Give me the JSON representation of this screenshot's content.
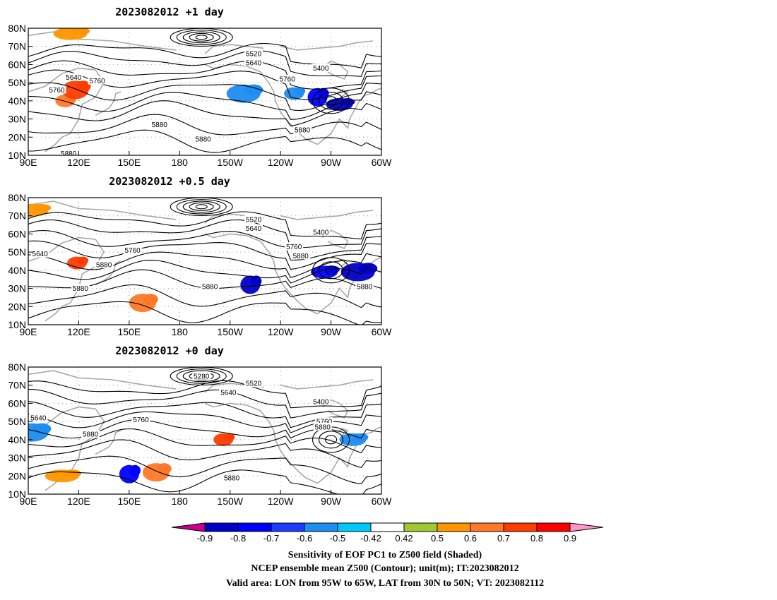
{
  "chart_data": [
    {
      "type": "map-contour",
      "title": "2023082012  +1 day",
      "xlim": [
        90,
        300
      ],
      "ylim": [
        10,
        80
      ],
      "xticks": [
        "90E",
        "120E",
        "150E",
        "180",
        "150W",
        "120W",
        "90W",
        "60W"
      ],
      "yticks": [
        "10N",
        "20N",
        "30N",
        "40N",
        "50N",
        "60N",
        "70N",
        "80N"
      ],
      "contour_labels": [
        {
          "text": "5520",
          "lon": 224,
          "lat": 66
        },
        {
          "text": "5640",
          "lon": 224,
          "lat": 61
        },
        {
          "text": "5400",
          "lon": 264,
          "lat": 58
        },
        {
          "text": "5760",
          "lon": 107,
          "lat": 46
        },
        {
          "text": "5760",
          "lon": 131,
          "lat": 51
        },
        {
          "text": "5640",
          "lon": 117,
          "lat": 53
        },
        {
          "text": "5760",
          "lon": 244,
          "lat": 52
        },
        {
          "text": "5880",
          "lon": 168,
          "lat": 27
        },
        {
          "text": "5880",
          "lon": 194,
          "lat": 19
        },
        {
          "text": "5880",
          "lon": 253,
          "lat": 24
        },
        {
          "text": "5880",
          "lon": 114,
          "lat": 11
        }
      ],
      "shaded_regions": [
        {
          "lon": 112,
          "lat": 40,
          "value": 0.6
        },
        {
          "lon": 118,
          "lat": 46,
          "value": 0.7
        },
        {
          "lon": 115,
          "lat": 77,
          "value": 0.5
        },
        {
          "lon": 262,
          "lat": 42,
          "value": -0.7
        },
        {
          "lon": 275,
          "lat": 38,
          "value": -0.8
        },
        {
          "lon": 218,
          "lat": 44,
          "value": -0.5
        },
        {
          "lon": 248,
          "lat": 44,
          "value": -0.5
        }
      ]
    },
    {
      "type": "map-contour",
      "title": "2023082012  +0.5 day",
      "xlim": [
        90,
        300
      ],
      "ylim": [
        10,
        80
      ],
      "xticks": [
        "90E",
        "120E",
        "150E",
        "180",
        "150W",
        "120W",
        "90W",
        "60W"
      ],
      "yticks": [
        "10N",
        "20N",
        "30N",
        "40N",
        "50N",
        "60N",
        "70N",
        "80N"
      ],
      "contour_labels": [
        {
          "text": "5520",
          "lon": 224,
          "lat": 68
        },
        {
          "text": "5640",
          "lon": 224,
          "lat": 63
        },
        {
          "text": "5400",
          "lon": 264,
          "lat": 61
        },
        {
          "text": "5640",
          "lon": 97,
          "lat": 49
        },
        {
          "text": "5760",
          "lon": 152,
          "lat": 51
        },
        {
          "text": "5880",
          "lon": 135,
          "lat": 43
        },
        {
          "text": "5760",
          "lon": 248,
          "lat": 53
        },
        {
          "text": "5880",
          "lon": 252,
          "lat": 48
        },
        {
          "text": "5880",
          "lon": 198,
          "lat": 31
        },
        {
          "text": "5880",
          "lon": 290,
          "lat": 31
        },
        {
          "text": "5880",
          "lon": 121,
          "lat": 30
        }
      ],
      "shaded_regions": [
        {
          "lon": 119,
          "lat": 44,
          "value": 0.7
        },
        {
          "lon": 158,
          "lat": 22,
          "value": 0.6
        },
        {
          "lon": 92,
          "lat": 73,
          "value": 0.5
        },
        {
          "lon": 222,
          "lat": 32,
          "value": -0.8
        },
        {
          "lon": 266,
          "lat": 39,
          "value": -0.7
        },
        {
          "lon": 286,
          "lat": 39,
          "value": -0.8
        }
      ]
    },
    {
      "type": "map-contour",
      "title": "2023082012  +0 day",
      "xlim": [
        90,
        300
      ],
      "ylim": [
        10,
        80
      ],
      "xticks": [
        "90E",
        "120E",
        "150E",
        "180",
        "150W",
        "120W",
        "90W",
        "60W"
      ],
      "yticks": [
        "10N",
        "20N",
        "30N",
        "40N",
        "50N",
        "60N",
        "70N",
        "80N"
      ],
      "contour_labels": [
        {
          "text": "5280",
          "lon": 193,
          "lat": 75
        },
        {
          "text": "5520",
          "lon": 224,
          "lat": 71
        },
        {
          "text": "5640",
          "lon": 209,
          "lat": 66
        },
        {
          "text": "5400",
          "lon": 264,
          "lat": 61
        },
        {
          "text": "5640",
          "lon": 96,
          "lat": 52
        },
        {
          "text": "5760",
          "lon": 157,
          "lat": 51
        },
        {
          "text": "5880",
          "lon": 127,
          "lat": 43
        },
        {
          "text": "5760",
          "lon": 266,
          "lat": 50
        },
        {
          "text": "5880",
          "lon": 265,
          "lat": 47
        },
        {
          "text": "5880",
          "lon": 211,
          "lat": 19
        }
      ],
      "shaded_regions": [
        {
          "lon": 206,
          "lat": 40,
          "value": 0.7
        },
        {
          "lon": 166,
          "lat": 22,
          "value": 0.6
        },
        {
          "lon": 110,
          "lat": 20,
          "value": 0.5
        },
        {
          "lon": 150,
          "lat": 21,
          "value": -0.7
        },
        {
          "lon": 283,
          "lat": 40,
          "value": -0.5
        },
        {
          "lon": 92,
          "lat": 44,
          "value": -0.5
        }
      ]
    }
  ],
  "colorbar": {
    "ticks": [
      "-0.9",
      "-0.8",
      "-0.7",
      "-0.6",
      "-0.5",
      "-0.42",
      "0.42",
      "0.5",
      "0.6",
      "0.7",
      "0.8",
      "0.9"
    ],
    "colors": [
      "#0000c8",
      "#0000ff",
      "#1e3cff",
      "#1e8cf0",
      "#00c8ff",
      "#ffffff",
      "#a0c832",
      "#ff9600",
      "#ff7828",
      "#ff3c00",
      "#ff0000"
    ],
    "under_color": "#c8008c",
    "over_color": "#ff96c8"
  },
  "caption": {
    "line1": "Sensitivity of EOF PC1 to Z500 field (Shaded)",
    "line2": "NCEP ensemble mean Z500 (Contour); unit(m); IT:2023082012",
    "line3": "Valid area: LON from 95W to 65W, LAT from 30N to 50N; VT: 2023082112"
  }
}
